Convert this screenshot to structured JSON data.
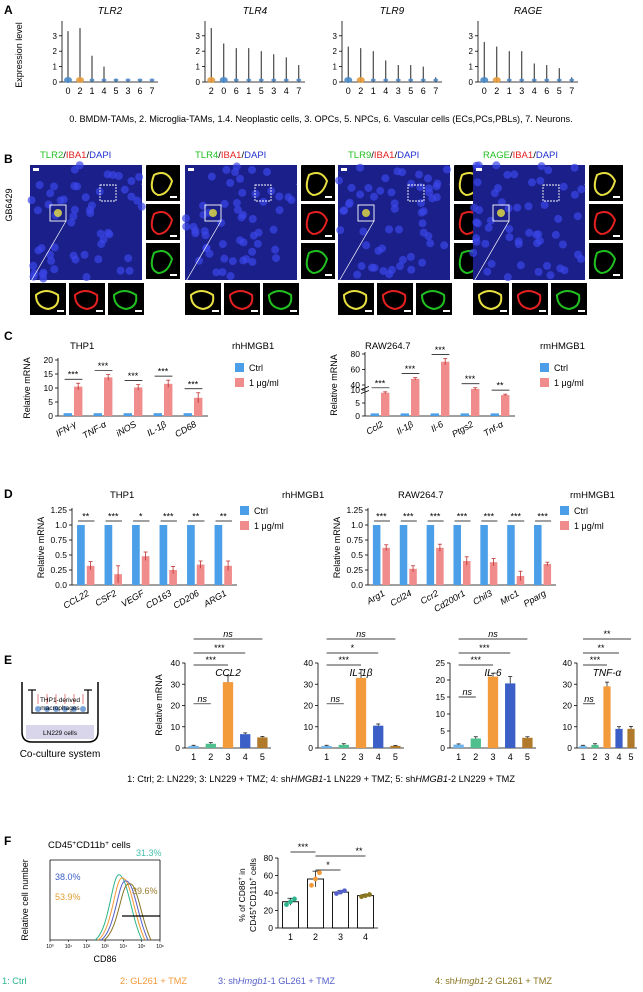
{
  "panel_labels": [
    "A",
    "B",
    "C",
    "D",
    "E",
    "F"
  ],
  "colors": {
    "ctrl": "#4a9fe8",
    "treat": "#f08c8c",
    "orange": "#f39a3a",
    "blue_dark": "#3b5fc6",
    "ltblue": "#6fb3e8",
    "green": "#4fc08d",
    "gray": "#777777",
    "teal": "#3fbfa8",
    "gold": "#b8912f",
    "merge_bg": "#1a1f8a",
    "red": "#e32020",
    "fgreen": "#20c020",
    "yellow": "#e8e040"
  },
  "panelA": {
    "ylabel": "Expression level",
    "yticks": [
      "0",
      "1",
      "2",
      "3"
    ],
    "caption": "0. BMDM-TAMs, 2. Microglia-TAMs, 1.4. Neoplastic cells, 3. OPCs, 5. NPCs, 6. Vascular cells (ECs,PCs,PBLs), 7. Neurons.",
    "violins": [
      {
        "title": "TLR2",
        "order": [
          "0",
          "2",
          "1",
          "4",
          "5",
          "3",
          "6",
          "7"
        ],
        "heights": [
          3.3,
          3.5,
          1.7,
          1.0,
          0.2,
          0.1,
          0.1,
          0.05
        ]
      },
      {
        "title": "TLR4",
        "order": [
          "2",
          "0",
          "6",
          "1",
          "5",
          "3",
          "4",
          "7"
        ],
        "heights": [
          3.5,
          2.5,
          2.2,
          2.2,
          2.0,
          1.8,
          1.6,
          1.1
        ]
      },
      {
        "title": "TLR9",
        "order": [
          "0",
          "2",
          "1",
          "4",
          "3",
          "5",
          "6",
          "7"
        ],
        "heights": [
          2.3,
          2.2,
          2.0,
          1.4,
          1.1,
          1.1,
          1.0,
          0.3
        ]
      },
      {
        "title": "RAGE",
        "order": [
          "0",
          "2",
          "1",
          "3",
          "4",
          "6",
          "5",
          "7"
        ],
        "heights": [
          2.6,
          2.3,
          2.0,
          2.0,
          1.2,
          1.1,
          0.9,
          0.3
        ]
      }
    ]
  },
  "panelB": {
    "side_label": "GB6429",
    "rows": [
      {
        "title_a": "TLR2",
        "title_b": "/IBA1/DAPI"
      },
      {
        "title_a": "TLR4",
        "title_b": "/IBA1/DAPI"
      },
      {
        "title_a": "TLR9",
        "title_b": "/IBA1/DAPI"
      },
      {
        "title_a": "RAGE",
        "title_b": "/IBA1/DAPI"
      }
    ]
  },
  "panelC": {
    "left": {
      "cell": "THP1",
      "reagent": "rhHMGB1",
      "ylabel": "Relative mRNA",
      "ylim": [
        0,
        20
      ],
      "yticks": [
        0,
        5,
        10,
        15,
        20
      ],
      "categories": [
        "IFN-γ",
        "TNF-α",
        "iNOS",
        "IL-1β",
        "CD68"
      ],
      "series": [
        {
          "name": "Ctrl",
          "values": [
            1,
            1,
            1,
            1,
            1
          ]
        },
        {
          "name": "1 μg/ml",
          "values": [
            10.5,
            13.8,
            10.2,
            11.5,
            6.5
          ]
        }
      ],
      "errors": [
        1.2,
        1.0,
        1.0,
        1.3,
        1.8
      ],
      "sig": [
        "***",
        "***",
        "***",
        "***",
        "***"
      ]
    },
    "right": {
      "cell": "RAW264.7",
      "reagent": "rmHMGB1",
      "ylabel": "Relative mRNA",
      "ylim": [
        0,
        80
      ],
      "yticks": [
        0,
        5,
        10,
        40,
        60,
        80
      ],
      "categories": [
        "Ccl2",
        "Il-1β",
        "Il-6",
        "Ptgs2",
        "Tnf-α"
      ],
      "series": [
        {
          "name": "Ctrl",
          "values": [
            1,
            1,
            1,
            1,
            1
          ]
        },
        {
          "name": "1 μg/ml",
          "values": [
            30,
            48,
            70,
            35,
            27
          ]
        }
      ],
      "errors": [
        1.2,
        1.5,
        4,
        1.5,
        1.2
      ],
      "sig": [
        "***",
        "***",
        "***",
        "***",
        "**"
      ]
    }
  },
  "panelD": {
    "left": {
      "cell": "THP1",
      "reagent": "rhHMGB1",
      "ylabel": "Relative mRNA",
      "ylim": [
        0,
        1.25
      ],
      "yticks": [
        0.0,
        0.25,
        0.5,
        0.75,
        1.0,
        1.25
      ],
      "categories": [
        "CCL22",
        "CSF2",
        "VEGF",
        "CD163",
        "CD206",
        "ARG1"
      ],
      "series": [
        {
          "name": "Ctrl",
          "values": [
            1,
            1,
            1,
            1,
            1,
            1
          ]
        },
        {
          "name": "1 μg/ml",
          "values": [
            0.32,
            0.18,
            0.48,
            0.25,
            0.34,
            0.32
          ]
        }
      ],
      "errors": [
        0.07,
        0.14,
        0.07,
        0.06,
        0.06,
        0.08
      ],
      "sig": [
        "**",
        "***",
        "*",
        "***",
        "**",
        "**"
      ]
    },
    "right": {
      "cell": "RAW264.7",
      "reagent": "rmHMGB1",
      "ylabel": "Relative mRNA",
      "ylim": [
        0,
        1.25
      ],
      "yticks": [
        0.0,
        0.25,
        0.5,
        0.75,
        1.0,
        1.25
      ],
      "categories": [
        "Arg1",
        "Ccl24",
        "Ccr2",
        "Cd200r1",
        "Chil3",
        "Mrc1",
        "Pparg"
      ],
      "series": [
        {
          "name": "Ctrl",
          "values": [
            1,
            1,
            1,
            1,
            1,
            1,
            1
          ]
        },
        {
          "name": "1 μg/ml",
          "values": [
            0.62,
            0.27,
            0.62,
            0.4,
            0.38,
            0.15,
            0.35
          ]
        }
      ],
      "errors": [
        0.05,
        0.05,
        0.06,
        0.07,
        0.06,
        0.08,
        0.03
      ],
      "sig": [
        "***",
        "***",
        "***",
        "***",
        "***",
        "***",
        "***"
      ]
    }
  },
  "panelE": {
    "diagram_top": "THP1-derived",
    "diagram_mid": "macrophages",
    "diagram_bottom": "LN229 cells",
    "diagram_label": "Co-culture system",
    "ylabel": "Relative mRNA",
    "charts": [
      {
        "title": "CCL2",
        "ylim": [
          0,
          40
        ],
        "yticks": [
          0,
          10,
          20,
          30,
          40
        ],
        "values": [
          1,
          2,
          31,
          6.5,
          5
        ],
        "errors": [
          0.3,
          0.5,
          3,
          0.6,
          0.4
        ],
        "sigs": [
          "ns",
          "***",
          "***",
          "ns"
        ]
      },
      {
        "title": "IL-1β",
        "ylim": [
          0,
          40
        ],
        "yticks": [
          0,
          10,
          20,
          30,
          40
        ],
        "values": [
          1,
          1.5,
          33,
          10.5,
          1
        ],
        "errors": [
          0.3,
          0.5,
          4,
          0.8,
          0.2
        ],
        "sigs": [
          "ns",
          "***",
          "*",
          "ns"
        ]
      },
      {
        "title": "IL-6",
        "ylim": [
          0,
          25
        ],
        "yticks": [
          0,
          5,
          10,
          15,
          20,
          25
        ],
        "values": [
          1,
          2.8,
          21,
          19,
          3
        ],
        "errors": [
          0.2,
          0.5,
          1,
          2,
          0.3
        ],
        "sigs": [
          "ns",
          "***",
          "***",
          "ns"
        ]
      },
      {
        "title": "TNF-α",
        "ylim": [
          0,
          40
        ],
        "yticks": [
          0,
          10,
          20,
          30,
          40
        ],
        "values": [
          1,
          1.5,
          29,
          9,
          9
        ],
        "errors": [
          0.3,
          0.5,
          2,
          1,
          1.2
        ],
        "sigs": [
          "ns",
          "***",
          "**",
          "**"
        ]
      }
    ],
    "categories": [
      "1",
      "2",
      "3",
      "4",
      "5"
    ],
    "legend_parts": [
      {
        "t": "1: Ctrl; 2: LN229; 3: LN229 + TMZ; 4: sh",
        "i": false
      },
      {
        "t": "HMGB1",
        "i": true
      },
      {
        "t": "-1 LN229 + TMZ; 5: sh",
        "i": false
      },
      {
        "t": "HMGB1",
        "i": true
      },
      {
        "t": "-2 LN229 + TMZ",
        "i": false
      }
    ]
  },
  "panelF": {
    "title": "CD45",
    "title_sup1": "+",
    "title_mid": "CD11b",
    "title_sup2": "+",
    "title_end": " cells",
    "hist_ylabel": "Relative cell number",
    "hist_xlabel": "CD86",
    "hist_xticks": [
      "10⁰",
      "10¹",
      "10²",
      "10³",
      "10⁴",
      "10⁵",
      "10⁶"
    ],
    "percents": [
      {
        "label": "31.3%",
        "color": "#3fbfa8"
      },
      {
        "label": "38.0%",
        "color": "#3b5fc6"
      },
      {
        "label": "53.9%",
        "color": "#e0a030"
      },
      {
        "label": "39.6%",
        "color": "#9a7a2a"
      }
    ],
    "bar_ylabel_1": "% of CD86",
    "bar_ylabel_sup": "+",
    "bar_ylabel_2": " in",
    "bar_ylabel_3": "CD45",
    "bar_ylabel_4": "CD11b",
    "bar_ylabel_5": " cells",
    "yticks": [
      0,
      20,
      40,
      60,
      80
    ],
    "ylim": [
      0,
      80
    ],
    "categories": [
      "1",
      "2",
      "3",
      "4"
    ],
    "values": [
      30,
      56,
      41,
      37
    ],
    "errors": [
      4,
      9,
      2,
      1.5
    ],
    "sigs": [
      "***",
      "*",
      "**"
    ],
    "legend": [
      {
        "parts": [
          {
            "t": "1: Ctrl",
            "i": false
          }
        ],
        "color": "#2bb58d"
      },
      {
        "parts": [
          {
            "t": "2: GL261 + TMZ",
            "i": false
          }
        ],
        "color": "#f39a3a"
      },
      {
        "parts": [
          {
            "t": "3: sh",
            "i": false
          },
          {
            "t": "Hmgb1",
            "i": true
          },
          {
            "t": "-1 GL261 + TMZ",
            "i": false
          }
        ],
        "color": "#5560c8"
      },
      {
        "parts": [
          {
            "t": "4: sh",
            "i": false
          },
          {
            "t": "Hmgb1",
            "i": true
          },
          {
            "t": "-2 GL261 + TMZ",
            "i": false
          }
        ],
        "color": "#8a7520"
      }
    ]
  }
}
